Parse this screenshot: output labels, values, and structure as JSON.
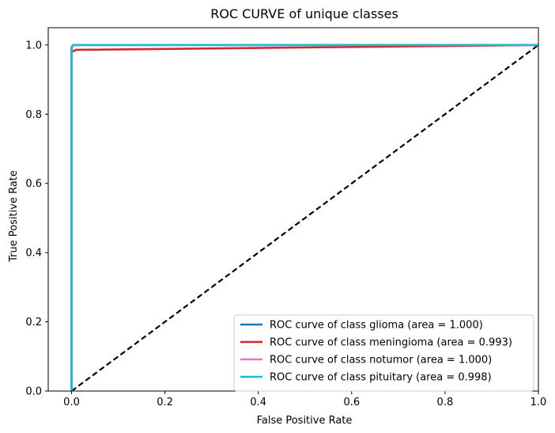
{
  "chart_data": {
    "type": "line",
    "title": "ROC CURVE of unique classes",
    "xlabel": "False Positive Rate",
    "ylabel": "True Positive Rate",
    "xlim": [
      -0.05,
      1.0
    ],
    "ylim": [
      0.0,
      1.05
    ],
    "x_ticks": [
      "0.0",
      "0.2",
      "0.4",
      "0.6",
      "0.8",
      "1.0"
    ],
    "y_ticks": [
      "0.0",
      "0.2",
      "0.4",
      "0.6",
      "0.8",
      "1.0"
    ],
    "grid": false,
    "legend_position": "lower-right",
    "series": [
      {
        "name": "ROC curve of class glioma (area = 1.000)",
        "color": "#1f77b4",
        "x": [
          0.0,
          0.0,
          0.003,
          1.0
        ],
        "y": [
          0.0,
          0.99,
          1.0,
          1.0
        ]
      },
      {
        "name": "ROC curve of class meningioma (area = 0.993)",
        "color": "#d62728",
        "x": [
          0.0,
          0.0,
          0.01,
          1.0
        ],
        "y": [
          0.0,
          0.98,
          0.986,
          1.0
        ]
      },
      {
        "name": "ROC curve of class notumor (area = 1.000)",
        "color": "#e377c2",
        "x": [
          0.0,
          0.0,
          0.003,
          1.0
        ],
        "y": [
          0.0,
          0.99,
          1.0,
          1.0
        ]
      },
      {
        "name": "ROC curve of class pituitary (area = 0.998)",
        "color": "#17becf",
        "x": [
          0.0,
          0.0,
          0.005,
          1.0
        ],
        "y": [
          0.0,
          0.995,
          1.0,
          1.0
        ]
      }
    ],
    "reference_line": {
      "x": [
        0.0,
        1.0
      ],
      "y": [
        0.0,
        1.0
      ],
      "color": "#000000",
      "style": "dashed"
    }
  }
}
